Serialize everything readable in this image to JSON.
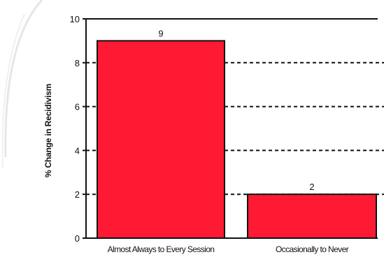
{
  "chart_data": {
    "type": "bar",
    "title": "",
    "xlabel": "",
    "ylabel": "% Change in Recidivism",
    "categories": [
      "Almost Always to Every Session",
      "Occasionally to Never"
    ],
    "values": [
      9,
      2
    ],
    "data_labels": [
      "9",
      "2"
    ],
    "ylim": [
      0,
      10
    ],
    "yticks": [
      0,
      2,
      4,
      6,
      8,
      10
    ],
    "ytick_labels": [
      "0",
      "2",
      "4",
      "6",
      "8",
      "10"
    ],
    "grid": "dashed horizontal",
    "legend": "none",
    "colors": {
      "bar": "#ff1a33",
      "bar_edge": "#111111",
      "axis": "#111111",
      "grid": "#111111",
      "decor_arc": "#e6e6e6"
    }
  }
}
